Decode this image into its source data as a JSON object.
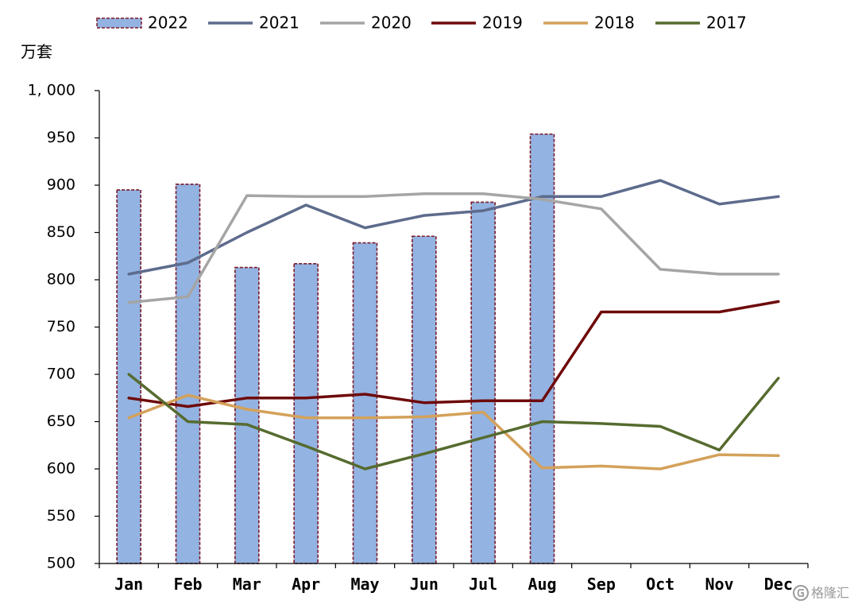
{
  "colors": {
    "bar_fill": "#93b3e2",
    "bar_border": "#7a1a2a",
    "axis": "#000000",
    "s2021": "#5d6b8c",
    "s2020": "#a5a5a5",
    "s2019": "#6e0a0a",
    "s2018": "#d4a15a",
    "s2017": "#566b2f"
  },
  "watermark": {
    "text": "格隆汇",
    "icon": "g-logo-icon"
  },
  "chart_data": {
    "type": "bar",
    "title": "",
    "ylabel": "万套",
    "ylim": [
      500,
      1000
    ],
    "yticks": [
      500,
      550,
      600,
      650,
      700,
      750,
      800,
      850,
      900,
      950,
      1000
    ],
    "ytick_labels": [
      "500",
      "550",
      "600",
      "650",
      "700",
      "750",
      "800",
      "850",
      "900",
      "950",
      "1, 000"
    ],
    "categories": [
      "Jan",
      "Feb",
      "Mar",
      "Apr",
      "May",
      "Jun",
      "Jul",
      "Aug",
      "Sep",
      "Oct",
      "Nov",
      "Dec"
    ],
    "legend_position": "top",
    "series": [
      {
        "name": "2022",
        "type": "bar",
        "values": [
          895,
          901,
          813,
          817,
          839,
          846,
          882,
          954,
          null,
          null,
          null,
          null
        ]
      },
      {
        "name": "2021",
        "type": "line",
        "values": [
          806,
          818,
          850,
          879,
          855,
          868,
          873,
          888,
          888,
          905,
          880,
          888
        ]
      },
      {
        "name": "2020",
        "type": "line",
        "values": [
          776,
          782,
          889,
          888,
          888,
          891,
          891,
          885,
          875,
          811,
          806,
          806
        ]
      },
      {
        "name": "2019",
        "type": "line",
        "values": [
          675,
          666,
          675,
          675,
          679,
          670,
          672,
          672,
          766,
          766,
          766,
          777
        ]
      },
      {
        "name": "2018",
        "type": "line",
        "values": [
          654,
          678,
          663,
          654,
          654,
          655,
          660,
          601,
          603,
          600,
          615,
          614
        ]
      },
      {
        "name": "2017",
        "type": "line",
        "values": [
          700,
          650,
          647,
          624,
          600,
          616,
          633,
          650,
          648,
          645,
          620,
          696
        ]
      }
    ]
  }
}
